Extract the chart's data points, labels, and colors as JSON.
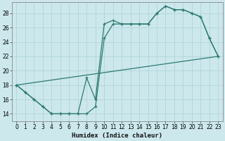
{
  "xlabel": "Humidex (Indice chaleur)",
  "ylabel": "",
  "bg_color": "#cce8ed",
  "grid_color": "#b0d4da",
  "line_color": "#2d7a70",
  "xlim": [
    -0.5,
    23.5
  ],
  "ylim": [
    13.0,
    29.5
  ],
  "yticks": [
    14,
    16,
    18,
    20,
    22,
    24,
    26,
    28
  ],
  "xticks": [
    0,
    1,
    2,
    3,
    4,
    5,
    6,
    7,
    8,
    9,
    10,
    11,
    12,
    13,
    14,
    15,
    16,
    17,
    18,
    19,
    20,
    21,
    22,
    23
  ],
  "line1_x": [
    0,
    1,
    2,
    3,
    4,
    5,
    6,
    7,
    8,
    9,
    10,
    11,
    12,
    13,
    14,
    15,
    16,
    17,
    18,
    19,
    20,
    21,
    22,
    23
  ],
  "line1_y": [
    18,
    17,
    16,
    15,
    14,
    14,
    14,
    14,
    14,
    15,
    24.5,
    26.5,
    26.5,
    26.5,
    26.5,
    26.5,
    28,
    29,
    28.5,
    28.5,
    28,
    27.5,
    24.5,
    22
  ],
  "line2_x": [
    0,
    1,
    2,
    3,
    4,
    5,
    6,
    7,
    8,
    9,
    10,
    11,
    12,
    13,
    14,
    15,
    16,
    17,
    18,
    19,
    20,
    21,
    22,
    23
  ],
  "line2_y": [
    18,
    17,
    16,
    15,
    14,
    14,
    14,
    14,
    19,
    16,
    26.5,
    27,
    26.5,
    26.5,
    26.5,
    26.5,
    28,
    29,
    28.5,
    28.5,
    28,
    27.5,
    24.5,
    22
  ],
  "line3_x": [
    0,
    23
  ],
  "line3_y": [
    18,
    22
  ]
}
